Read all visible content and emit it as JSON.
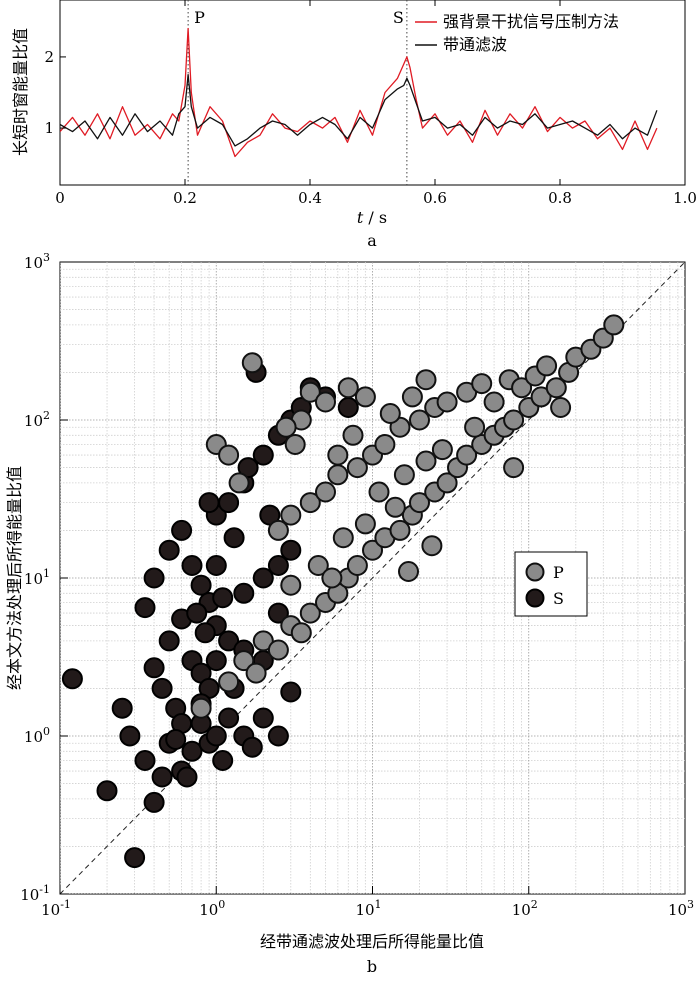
{
  "chart_data": [
    {
      "type": "line",
      "panel_label": "a",
      "xlabel_var": "t",
      "xlabel_unit": " / s",
      "ylabel": "长短时窗能量比值",
      "xlim": [
        0,
        1.0
      ],
      "ylim": [
        0.2,
        2.8
      ],
      "x_ticks": [
        0,
        0.2,
        0.4,
        0.6,
        0.8,
        1.0
      ],
      "x_tick_labels": [
        "0",
        "0.2",
        "0.4",
        "0.6",
        "0.8",
        "1.0"
      ],
      "y_ticks": [
        1,
        2
      ],
      "y_tick_labels": [
        "1",
        "2"
      ],
      "grid": false,
      "legend_position": "top-right",
      "markers": [
        {
          "label": "P",
          "x": 0.205
        },
        {
          "label": "S",
          "x": 0.555
        }
      ],
      "series": [
        {
          "name": "强背景干扰信号压制方法",
          "color": "#e01b24",
          "x": [
            0.0,
            0.02,
            0.04,
            0.06,
            0.08,
            0.1,
            0.12,
            0.14,
            0.16,
            0.18,
            0.19,
            0.2,
            0.205,
            0.21,
            0.22,
            0.24,
            0.26,
            0.28,
            0.3,
            0.32,
            0.34,
            0.36,
            0.38,
            0.4,
            0.42,
            0.44,
            0.46,
            0.48,
            0.5,
            0.52,
            0.54,
            0.55,
            0.555,
            0.56,
            0.57,
            0.58,
            0.6,
            0.62,
            0.64,
            0.66,
            0.68,
            0.7,
            0.72,
            0.74,
            0.76,
            0.78,
            0.8,
            0.82,
            0.84,
            0.86,
            0.88,
            0.9,
            0.92,
            0.94,
            0.955
          ],
          "y": [
            0.95,
            1.15,
            0.9,
            1.2,
            0.85,
            1.3,
            0.9,
            1.05,
            0.85,
            1.2,
            1.1,
            1.6,
            2.4,
            1.5,
            0.9,
            1.3,
            1.1,
            0.6,
            0.8,
            0.9,
            1.2,
            1.0,
            0.95,
            1.1,
            1.0,
            1.15,
            0.8,
            1.25,
            0.9,
            1.5,
            1.7,
            1.9,
            2.0,
            1.85,
            1.4,
            1.0,
            1.2,
            0.9,
            1.1,
            0.8,
            1.25,
            0.9,
            1.2,
            1.0,
            1.3,
            0.95,
            1.15,
            1.0,
            1.1,
            0.85,
            1.0,
            0.7,
            1.1,
            0.7,
            1.0
          ]
        },
        {
          "name": "带通滤波",
          "color": "#111111",
          "x": [
            0.0,
            0.02,
            0.04,
            0.06,
            0.08,
            0.1,
            0.12,
            0.14,
            0.16,
            0.18,
            0.19,
            0.2,
            0.205,
            0.21,
            0.22,
            0.24,
            0.26,
            0.28,
            0.3,
            0.32,
            0.34,
            0.36,
            0.38,
            0.4,
            0.42,
            0.44,
            0.46,
            0.48,
            0.5,
            0.52,
            0.54,
            0.55,
            0.555,
            0.56,
            0.57,
            0.58,
            0.6,
            0.62,
            0.64,
            0.66,
            0.68,
            0.7,
            0.72,
            0.74,
            0.76,
            0.78,
            0.8,
            0.82,
            0.84,
            0.86,
            0.88,
            0.9,
            0.92,
            0.94,
            0.955
          ],
          "y": [
            1.05,
            0.95,
            1.1,
            0.85,
            1.15,
            0.9,
            1.2,
            0.95,
            1.1,
            0.9,
            1.2,
            1.3,
            1.75,
            1.3,
            1.0,
            1.15,
            1.05,
            0.75,
            0.85,
            1.0,
            1.1,
            1.05,
            0.9,
            1.05,
            1.15,
            1.05,
            0.85,
            1.15,
            1.0,
            1.4,
            1.55,
            1.6,
            1.7,
            1.6,
            1.35,
            1.1,
            1.15,
            1.0,
            1.05,
            0.9,
            1.15,
            1.0,
            1.1,
            1.05,
            1.2,
            1.0,
            1.05,
            1.1,
            1.0,
            0.9,
            1.05,
            0.85,
            1.0,
            0.9,
            1.25
          ]
        }
      ]
    },
    {
      "type": "scatter",
      "panel_label": "b",
      "xlabel": "经带通滤波处理后所得能量比值",
      "ylabel": "经本文方法处理后所得能量比值",
      "x_scale": "log",
      "y_scale": "log",
      "xlim": [
        0.1,
        1000
      ],
      "ylim": [
        0.1,
        1000
      ],
      "tick_base": "10",
      "tick_exponents": [
        "-1",
        "0",
        "1",
        "2",
        "3"
      ],
      "grid": true,
      "diagonal_reference": true,
      "legend_position": "center-right",
      "series": [
        {
          "name": "P",
          "color": "#8a8a8a",
          "edge": "#111111",
          "points": [
            [
              0.8,
              1.5
            ],
            [
              1.2,
              2.2
            ],
            [
              1.5,
              3.0
            ],
            [
              1.8,
              2.5
            ],
            [
              2.0,
              4.0
            ],
            [
              2.5,
              3.5
            ],
            [
              3.0,
              5.0
            ],
            [
              3.5,
              4.5
            ],
            [
              4.0,
              6.0
            ],
            [
              5.0,
              7.0
            ],
            [
              6.0,
              8.0
            ],
            [
              7.0,
              10.0
            ],
            [
              8.0,
              12.0
            ],
            [
              10.0,
              15.0
            ],
            [
              12.0,
              18.0
            ],
            [
              15.0,
              20.0
            ],
            [
              18.0,
              25.0
            ],
            [
              20.0,
              30.0
            ],
            [
              25.0,
              35.0
            ],
            [
              30.0,
              40.0
            ],
            [
              35.0,
              50.0
            ],
            [
              40.0,
              60.0
            ],
            [
              50.0,
              70.0
            ],
            [
              60.0,
              80.0
            ],
            [
              70.0,
              90.0
            ],
            [
              80.0,
              100.0
            ],
            [
              100.0,
              120.0
            ],
            [
              120.0,
              140.0
            ],
            [
              150.0,
              160.0
            ],
            [
              180.0,
              200.0
            ],
            [
              200.0,
              250.0
            ],
            [
              250.0,
              280.0
            ],
            [
              300.0,
              330.0
            ],
            [
              350.0,
              400.0
            ],
            [
              2.5,
              20.0
            ],
            [
              3.0,
              25.0
            ],
            [
              4.0,
              30.0
            ],
            [
              5.0,
              35.0
            ],
            [
              6.0,
              45.0
            ],
            [
              8.0,
              50.0
            ],
            [
              10.0,
              60.0
            ],
            [
              12.0,
              70.0
            ],
            [
              15.0,
              90.0
            ],
            [
              20.0,
              100.0
            ],
            [
              25.0,
              120.0
            ],
            [
              30.0,
              130.0
            ],
            [
              40.0,
              150.0
            ],
            [
              50.0,
              170.0
            ],
            [
              3.5,
              100.0
            ],
            [
              4.0,
              150.0
            ],
            [
              5.0,
              130.0
            ],
            [
              7.0,
              160.0
            ],
            [
              9.0,
              140.0
            ],
            [
              13.0,
              110.0
            ],
            [
              18.0,
              140.0
            ],
            [
              22.0,
              180.0
            ],
            [
              1.7,
              230.0
            ],
            [
              1.0,
              70.0
            ],
            [
              1.2,
              60.0
            ],
            [
              1.4,
              40.0
            ],
            [
              2.8,
              90.0
            ],
            [
              3.2,
              70.0
            ],
            [
              6.0,
              60.0
            ],
            [
              7.5,
              80.0
            ],
            [
              11.0,
              35.0
            ],
            [
              16.0,
              45.0
            ],
            [
              22.0,
              55.0
            ],
            [
              28.0,
              65.0
            ],
            [
              45.0,
              90.0
            ],
            [
              60.0,
              130.0
            ],
            [
              75.0,
              180.0
            ],
            [
              90.0,
              160.0
            ],
            [
              110.0,
              190.0
            ],
            [
              130.0,
              220.0
            ],
            [
              160.0,
              120.0
            ],
            [
              80.0,
              50.0
            ],
            [
              4.5,
              12.0
            ],
            [
              6.5,
              18.0
            ],
            [
              9.0,
              22.0
            ],
            [
              14.0,
              28.0
            ],
            [
              17.0,
              11.0
            ],
            [
              24.0,
              16.0
            ],
            [
              3.0,
              9.0
            ],
            [
              5.5,
              10.0
            ]
          ]
        },
        {
          "name": "S",
          "color": "#221a1a",
          "edge": "#000000",
          "points": [
            [
              0.12,
              2.3
            ],
            [
              0.2,
              0.45
            ],
            [
              0.3,
              0.17
            ],
            [
              0.28,
              1.0
            ],
            [
              0.35,
              0.7
            ],
            [
              0.4,
              0.38
            ],
            [
              0.45,
              0.55
            ],
            [
              0.5,
              0.9
            ],
            [
              0.55,
              1.5
            ],
            [
              0.6,
              0.6
            ],
            [
              0.7,
              0.8
            ],
            [
              0.8,
              1.2
            ],
            [
              0.9,
              0.9
            ],
            [
              1.0,
              1.0
            ],
            [
              1.2,
              1.3
            ],
            [
              1.5,
              1.0
            ],
            [
              2.0,
              1.3
            ],
            [
              3.0,
              1.9
            ],
            [
              0.35,
              6.5
            ],
            [
              0.4,
              10.0
            ],
            [
              0.5,
              15.0
            ],
            [
              0.6,
              20.0
            ],
            [
              0.7,
              12.0
            ],
            [
              0.8,
              9.0
            ],
            [
              0.9,
              7.0
            ],
            [
              1.0,
              5.0
            ],
            [
              1.2,
              4.0
            ],
            [
              1.5,
              3.5
            ],
            [
              2.0,
              3.0
            ],
            [
              0.5,
              4.0
            ],
            [
              0.6,
              5.5
            ],
            [
              0.7,
              3.0
            ],
            [
              0.8,
              2.5
            ],
            [
              0.9,
              2.0
            ],
            [
              1.0,
              3.0
            ],
            [
              0.45,
              2.0
            ],
            [
              1.0,
              25.0
            ],
            [
              1.2,
              30.0
            ],
            [
              1.5,
              40.0
            ],
            [
              2.0,
              60.0
            ],
            [
              2.5,
              80.0
            ],
            [
              3.0,
              100.0
            ],
            [
              3.5,
              120.0
            ],
            [
              4.0,
              160.0
            ],
            [
              5.0,
              140.0
            ],
            [
              7.0,
              120.0
            ],
            [
              1.8,
              200.0
            ],
            [
              0.9,
              30.0
            ],
            [
              1.5,
              8.0
            ],
            [
              2.0,
              10.0
            ],
            [
              2.5,
              12.0
            ],
            [
              0.6,
              1.2
            ],
            [
              0.8,
              1.6
            ],
            [
              1.3,
              2.0
            ],
            [
              0.25,
              1.5
            ],
            [
              0.55,
              0.95
            ],
            [
              2.5,
              6.0
            ],
            [
              3.0,
              15.0
            ],
            [
              1.3,
              18.0
            ],
            [
              0.75,
              6.0
            ],
            [
              0.4,
              2.7
            ],
            [
              0.65,
              0.55
            ],
            [
              1.1,
              0.7
            ],
            [
              1.7,
              0.85
            ],
            [
              2.5,
              1.0
            ],
            [
              1.0,
              12.0
            ],
            [
              1.6,
              50.0
            ],
            [
              2.2,
              25.0
            ],
            [
              0.85,
              4.5
            ],
            [
              1.1,
              7.5
            ]
          ]
        }
      ]
    }
  ]
}
